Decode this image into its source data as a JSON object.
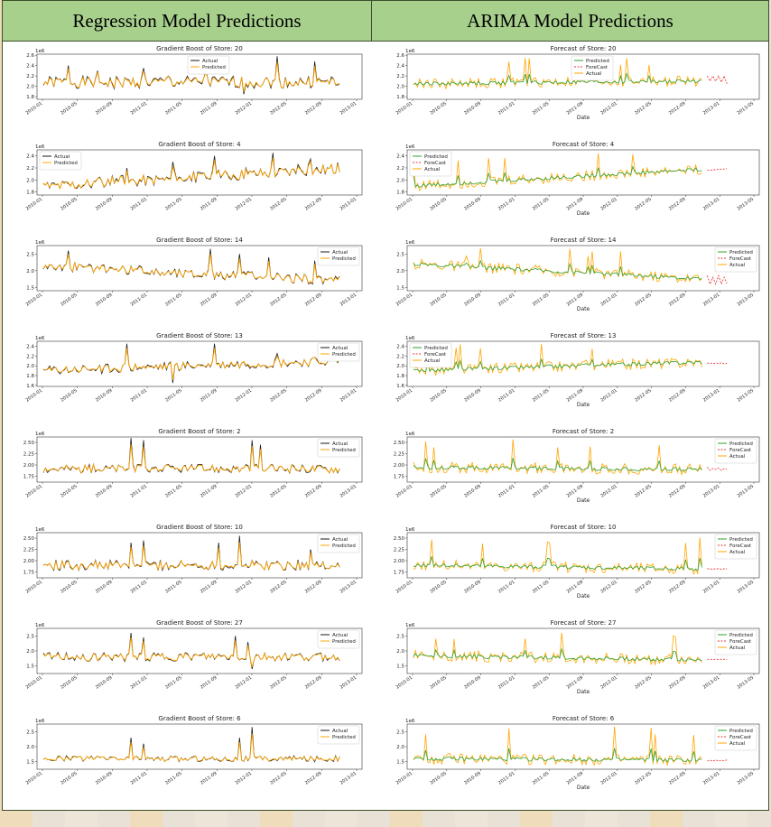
{
  "header": {
    "left_title": "Regression Model Predictions",
    "right_title": "ARIMA Model Predictions"
  },
  "colors": {
    "actual_black": "#1a1a1a",
    "predicted_orange": "#ffa500",
    "arima_predicted_green": "#2ca02c",
    "forecast_red": "#e83a3a",
    "header_green": "#a8d08d",
    "axis": "#333333"
  },
  "common": {
    "x_ticks": [
      "2010-01",
      "2010-05",
      "2010-09",
      "2011-01",
      "2011-05",
      "2011-09",
      "2012-01",
      "2012-05",
      "2012-09",
      "2013-01"
    ],
    "x_ticks_arima": [
      "2010-01",
      "2010-05",
      "2010-09",
      "2011-01",
      "2011-05",
      "2011-09",
      "2012-01",
      "2012-05",
      "2012-09",
      "2013-01",
      "2013-05"
    ],
    "x_label_arima": "Date",
    "exponent": "1e6",
    "legend_actual": "Actual",
    "legend_predicted": "Predicted",
    "legend_forecast": "ForeCast"
  },
  "chart_data": [
    {
      "panel": "regression",
      "type": "line",
      "title": "Gradient Boost of Store: 20",
      "ylim": [
        1.75,
        2.62
      ],
      "yticks": [
        "1.8",
        "2.0",
        "2.2",
        "2.4",
        "2.6"
      ],
      "ytick_values": [
        1.8,
        2.0,
        2.2,
        2.4,
        2.6
      ],
      "legend": "top-center",
      "series": [
        {
          "name": "Actual",
          "base": 2.08,
          "amp": 0.12,
          "spikes": [
            [
              12,
              2.4
            ],
            [
              26,
              2.3
            ],
            [
              34,
              1.95
            ],
            [
              48,
              2.35
            ],
            [
              60,
              2.2
            ],
            [
              78,
              2.3
            ],
            [
              96,
              1.85
            ],
            [
              112,
              2.58
            ],
            [
              130,
              2.48
            ]
          ]
        },
        {
          "name": "Predicted",
          "base": 2.08,
          "amp": 0.09
        }
      ]
    },
    {
      "panel": "arima",
      "type": "line",
      "title": "Forecast of Store: 20",
      "ylim": [
        1.75,
        2.62
      ],
      "yticks": [
        "1.8",
        "2.0",
        "2.2",
        "2.4",
        "2.6"
      ],
      "ytick_values": [
        1.8,
        2.0,
        2.2,
        2.4,
        2.6
      ],
      "legend": "top-center",
      "forecast": [
        2.2,
        2.1,
        2.2,
        2.1,
        2.2,
        2.08,
        2.2,
        2.05
      ],
      "trend": [
        2.05,
        2.1
      ]
    },
    {
      "panel": "regression",
      "type": "line",
      "title": "Gradient Boost of Store: 4",
      "ylim": [
        1.75,
        2.5
      ],
      "yticks": [
        "1.8",
        "2.0",
        "2.2",
        "2.4"
      ],
      "ytick_values": [
        1.8,
        2.0,
        2.2,
        2.4
      ],
      "legend": "top-left",
      "series": [
        {
          "name": "Actual",
          "base": 1.9,
          "amp": 0.1,
          "trend": 0.3,
          "spikes": [
            [
              40,
              2.2
            ],
            [
              62,
              2.3
            ],
            [
              82,
              2.4
            ],
            [
              110,
              2.45
            ],
            [
              128,
              2.35
            ]
          ]
        },
        {
          "name": "Predicted",
          "base": 1.9,
          "amp": 0.08,
          "trend": 0.3
        }
      ]
    },
    {
      "panel": "arima",
      "type": "line",
      "title": "Forecast of Store: 4",
      "ylim": [
        1.75,
        2.5
      ],
      "yticks": [
        "1.8",
        "2.0",
        "2.2",
        "2.4"
      ],
      "ytick_values": [
        1.8,
        2.0,
        2.2,
        2.4
      ],
      "legend": "top-left",
      "forecast": [
        2.16,
        2.16,
        2.17,
        2.17,
        2.18,
        2.18,
        2.18,
        2.19
      ],
      "trend": [
        1.9,
        2.18
      ]
    },
    {
      "panel": "regression",
      "type": "line",
      "title": "Gradient Boost of Store: 14",
      "ylim": [
        1.4,
        2.75
      ],
      "yticks": [
        "1.5",
        "2.0",
        "2.5"
      ],
      "ytick_values": [
        1.5,
        2.0,
        2.5
      ],
      "legend": "top-right",
      "series": [
        {
          "name": "Actual",
          "base": 2.15,
          "amp": 0.15,
          "trend": -0.45,
          "spikes": [
            [
              12,
              2.6
            ],
            [
              80,
              2.65
            ],
            [
              94,
              2.5
            ],
            [
              108,
              2.4
            ],
            [
              130,
              2.3
            ]
          ]
        },
        {
          "name": "Predicted",
          "base": 2.15,
          "amp": 0.12,
          "trend": -0.45
        }
      ]
    },
    {
      "panel": "arima",
      "type": "line",
      "title": "Forecast of Store: 14",
      "ylim": [
        1.4,
        2.75
      ],
      "yticks": [
        "1.5",
        "2.0",
        "2.5"
      ],
      "ytick_values": [
        1.5,
        2.0,
        2.5
      ],
      "legend": "top-right",
      "forecast": [
        1.85,
        1.6,
        1.8,
        1.6,
        1.85,
        1.6,
        1.8,
        1.62
      ],
      "trend": [
        2.2,
        1.75
      ]
    },
    {
      "panel": "regression",
      "type": "line",
      "title": "Gradient Boost of Store: 13",
      "ylim": [
        1.58,
        2.5
      ],
      "yticks": [
        "1.6",
        "1.8",
        "2.0",
        "2.2",
        "2.4"
      ],
      "ytick_values": [
        1.6,
        1.8,
        2.0,
        2.2,
        2.4
      ],
      "legend": "top-right",
      "series": [
        {
          "name": "Actual",
          "base": 1.9,
          "amp": 0.1,
          "trend": 0.2,
          "spikes": [
            [
              40,
              2.45
            ],
            [
              62,
              1.65
            ],
            [
              82,
              2.45
            ],
            [
              112,
              2.25
            ]
          ]
        },
        {
          "name": "Predicted",
          "base": 1.9,
          "amp": 0.08,
          "trend": 0.2
        }
      ]
    },
    {
      "panel": "arima",
      "type": "line",
      "title": "Forecast of Store: 13",
      "ylim": [
        1.58,
        2.5
      ],
      "yticks": [
        "1.6",
        "1.8",
        "2.0",
        "2.2",
        "2.4"
      ],
      "ytick_values": [
        1.6,
        1.8,
        2.0,
        2.2,
        2.4
      ],
      "legend": "top-left",
      "forecast": [
        2.05,
        2.06,
        2.04,
        2.06,
        2.05,
        2.06,
        2.04,
        2.05
      ],
      "trend": [
        1.9,
        2.08
      ]
    },
    {
      "panel": "regression",
      "type": "line",
      "title": "Gradient Boost of Store: 2",
      "ylim": [
        1.62,
        2.62
      ],
      "yticks": [
        "1.75",
        "2.00",
        "2.25",
        "2.50"
      ],
      "ytick_values": [
        1.75,
        2.0,
        2.25,
        2.5
      ],
      "legend": "top-right",
      "series": [
        {
          "name": "Actual",
          "base": 1.92,
          "amp": 0.1,
          "spikes": [
            [
              42,
              2.6
            ],
            [
              48,
              2.55
            ],
            [
              100,
              2.55
            ],
            [
              104,
              2.45
            ]
          ]
        },
        {
          "name": "Predicted",
          "base": 1.92,
          "amp": 0.08
        }
      ]
    },
    {
      "panel": "arima",
      "type": "line",
      "title": "Forecast of Store: 2",
      "ylim": [
        1.62,
        2.62
      ],
      "yticks": [
        "1.75",
        "2.00",
        "2.25",
        "2.50"
      ],
      "ytick_values": [
        1.75,
        2.0,
        2.25,
        2.5
      ],
      "legend": "top-right",
      "forecast": [
        1.95,
        1.88,
        1.92,
        1.9,
        1.93,
        1.88,
        1.92,
        1.9
      ],
      "trend": [
        1.95,
        1.9
      ]
    },
    {
      "panel": "regression",
      "type": "line",
      "title": "Gradient Boost of Store: 10",
      "ylim": [
        1.62,
        2.62
      ],
      "yticks": [
        "1.75",
        "2.00",
        "2.25",
        "2.50"
      ],
      "ytick_values": [
        1.75,
        2.0,
        2.25,
        2.5
      ],
      "legend": "top-right",
      "series": [
        {
          "name": "Actual",
          "base": 1.9,
          "amp": 0.12,
          "spikes": [
            [
              42,
              2.4
            ],
            [
              48,
              2.45
            ],
            [
              84,
              2.4
            ],
            [
              94,
              2.55
            ],
            [
              128,
              2.25
            ]
          ]
        },
        {
          "name": "Predicted",
          "base": 1.9,
          "amp": 0.09
        }
      ]
    },
    {
      "panel": "arima",
      "type": "line",
      "title": "Forecast of Store: 10",
      "ylim": [
        1.62,
        2.62
      ],
      "yticks": [
        "1.75",
        "2.00",
        "2.25",
        "2.50"
      ],
      "ytick_values": [
        1.75,
        2.0,
        2.25,
        2.5
      ],
      "legend": "top-right",
      "forecast": [
        1.82,
        1.82,
        1.81,
        1.82,
        1.82,
        1.81,
        1.82,
        1.82
      ],
      "trend": [
        1.9,
        1.82
      ]
    },
    {
      "panel": "regression",
      "type": "line",
      "title": "Gradient Boost of Store: 27",
      "ylim": [
        1.25,
        2.75
      ],
      "yticks": [
        "1.5",
        "2.0",
        "2.5"
      ],
      "ytick_values": [
        1.5,
        2.0,
        2.5
      ],
      "legend": "top-right",
      "series": [
        {
          "name": "Actual",
          "base": 1.8,
          "amp": 0.15,
          "spikes": [
            [
              42,
              2.6
            ],
            [
              48,
              2.45
            ],
            [
              92,
              2.5
            ],
            [
              98,
              2.3
            ],
            [
              100,
              1.4
            ]
          ]
        },
        {
          "name": "Predicted",
          "base": 1.8,
          "amp": 0.12
        }
      ]
    },
    {
      "panel": "arima",
      "type": "line",
      "title": "Forecast of Store: 27",
      "ylim": [
        1.25,
        2.75
      ],
      "yticks": [
        "1.5",
        "2.0",
        "2.5"
      ],
      "ytick_values": [
        1.5,
        2.0,
        2.5
      ],
      "legend": "top-right",
      "forecast": [
        1.72,
        1.72,
        1.72,
        1.72,
        1.72,
        1.72,
        1.72,
        1.72
      ],
      "trend": [
        1.85,
        1.7
      ]
    },
    {
      "panel": "regression",
      "type": "line",
      "title": "Gradient Boost of Store: 6",
      "ylim": [
        1.25,
        2.75
      ],
      "yticks": [
        "1.5",
        "2.0",
        "2.5"
      ],
      "ytick_values": [
        1.5,
        2.0,
        2.5
      ],
      "legend": "top-right",
      "series": [
        {
          "name": "Actual",
          "base": 1.6,
          "amp": 0.1,
          "spikes": [
            [
              42,
              2.3
            ],
            [
              48,
              2.1
            ],
            [
              94,
              2.3
            ],
            [
              100,
              2.65
            ]
          ]
        },
        {
          "name": "Predicted",
          "base": 1.6,
          "amp": 0.08
        }
      ]
    },
    {
      "panel": "arima",
      "type": "line",
      "title": "Forecast of Store: 6",
      "ylim": [
        1.25,
        2.75
      ],
      "yticks": [
        "1.5",
        "2.0",
        "2.5"
      ],
      "ytick_values": [
        1.5,
        2.0,
        2.5
      ],
      "legend": "top-right",
      "forecast": [
        1.52,
        1.55,
        1.52,
        1.56,
        1.52,
        1.55,
        1.53,
        1.56
      ],
      "trend": [
        1.6,
        1.55
      ]
    }
  ]
}
